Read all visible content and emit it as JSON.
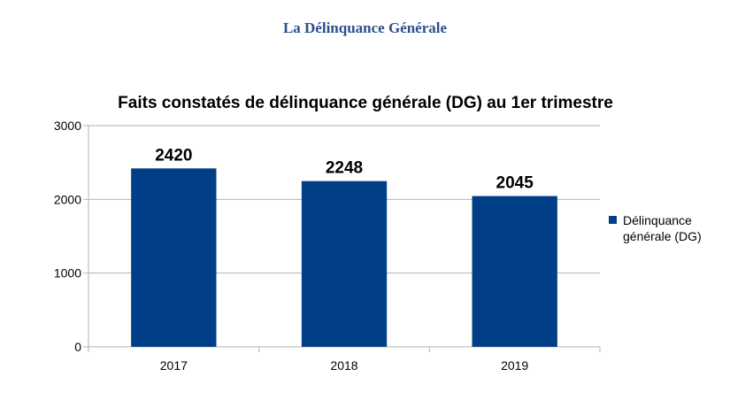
{
  "header": {
    "title": "La Délinquance Générale"
  },
  "colors": {
    "bar": "#003f87",
    "title": "#2a4f8f",
    "grid": "#b3b3b3",
    "axis": "#b3b3b3"
  },
  "chart_data": {
    "type": "bar",
    "title": "Faits constatés de délinquance générale (DG) au 1er trimestre",
    "categories": [
      "2017",
      "2018",
      "2019"
    ],
    "series": [
      {
        "name": "Délinquance générale (DG)",
        "values": [
          2420,
          2248,
          2045
        ]
      }
    ],
    "ylim": [
      0,
      3000
    ],
    "yticks": [
      0,
      1000,
      2000,
      3000
    ],
    "xlabel": "",
    "ylabel": "",
    "grid": true,
    "legend": "right"
  }
}
